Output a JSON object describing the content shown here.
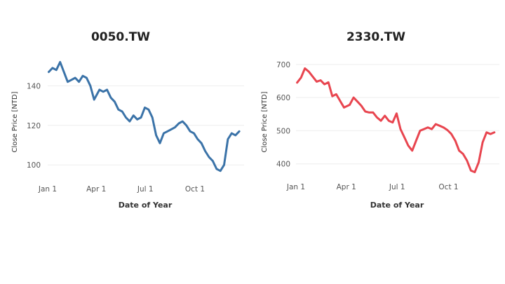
{
  "chart_data": [
    {
      "type": "line",
      "title": "0050.TW",
      "xlabel": "Date of Year",
      "ylabel": "Close Price [NTD]",
      "x_ticks": [
        "Jan 1",
        "Apr 1",
        "Jul 1",
        "Oct 1"
      ],
      "y_ticks": [
        100,
        120,
        140
      ],
      "ylim": [
        93,
        155
      ],
      "xlim": [
        "2022-01-01",
        "2022-12-31"
      ],
      "grid": true,
      "color": "#3b73a8",
      "series": [
        {
          "x": [
            "2022-01-03",
            "2022-01-10",
            "2022-01-17",
            "2022-01-24",
            "2022-02-07",
            "2022-02-14",
            "2022-02-21",
            "2022-02-28",
            "2022-03-07",
            "2022-03-14",
            "2022-03-21",
            "2022-03-28",
            "2022-04-07",
            "2022-04-14",
            "2022-04-21",
            "2022-04-28",
            "2022-05-05",
            "2022-05-12",
            "2022-05-19",
            "2022-05-26",
            "2022-06-02",
            "2022-06-09",
            "2022-06-16",
            "2022-06-23",
            "2022-06-30",
            "2022-07-07",
            "2022-07-14",
            "2022-07-21",
            "2022-07-28",
            "2022-08-04",
            "2022-08-11",
            "2022-08-18",
            "2022-08-25",
            "2022-09-01",
            "2022-09-08",
            "2022-09-15",
            "2022-09-22",
            "2022-09-29",
            "2022-10-06",
            "2022-10-13",
            "2022-10-20",
            "2022-10-27",
            "2022-11-03",
            "2022-11-10",
            "2022-11-17",
            "2022-11-24",
            "2022-12-01",
            "2022-12-08",
            "2022-12-15",
            "2022-12-22"
          ],
          "values": [
            147,
            149,
            148,
            152,
            142,
            143,
            144,
            142,
            145,
            144,
            140,
            133,
            138,
            137,
            138,
            134,
            132,
            128,
            127,
            124,
            122,
            125,
            123,
            124,
            129,
            128,
            124,
            115,
            111,
            116,
            117,
            118,
            119,
            121,
            122,
            120,
            117,
            116,
            113,
            111,
            107,
            104,
            102,
            98,
            97,
            100,
            113,
            116,
            115,
            117
          ]
        }
      ]
    },
    {
      "type": "line",
      "title": "2330.TW",
      "xlabel": "Date of Year",
      "ylabel": "Close Price [NTD]",
      "x_ticks": [
        "Jan 1",
        "Apr 1",
        "Jul 1",
        "Oct 1"
      ],
      "y_ticks": [
        400,
        500,
        600,
        700
      ],
      "ylim": [
        355,
        725
      ],
      "xlim": [
        "2022-01-01",
        "2022-12-31"
      ],
      "grid": true,
      "color": "#e8454f",
      "series": [
        {
          "x": [
            "2022-01-03",
            "2022-01-10",
            "2022-01-17",
            "2022-01-24",
            "2022-02-07",
            "2022-02-14",
            "2022-02-21",
            "2022-02-28",
            "2022-03-07",
            "2022-03-14",
            "2022-03-21",
            "2022-03-28",
            "2022-04-07",
            "2022-04-14",
            "2022-04-21",
            "2022-04-28",
            "2022-05-05",
            "2022-05-12",
            "2022-05-19",
            "2022-05-26",
            "2022-06-02",
            "2022-06-09",
            "2022-06-16",
            "2022-06-23",
            "2022-06-30",
            "2022-07-07",
            "2022-07-14",
            "2022-07-21",
            "2022-07-28",
            "2022-08-04",
            "2022-08-11",
            "2022-08-18",
            "2022-08-25",
            "2022-09-01",
            "2022-09-08",
            "2022-09-15",
            "2022-09-22",
            "2022-09-29",
            "2022-10-06",
            "2022-10-13",
            "2022-10-20",
            "2022-10-27",
            "2022-11-03",
            "2022-11-10",
            "2022-11-17",
            "2022-11-24",
            "2022-12-01",
            "2022-12-08",
            "2022-12-15",
            "2022-12-22"
          ],
          "values": [
            645,
            660,
            688,
            678,
            648,
            652,
            640,
            646,
            604,
            610,
            590,
            570,
            578,
            600,
            588,
            575,
            558,
            555,
            555,
            540,
            530,
            545,
            530,
            525,
            552,
            505,
            480,
            455,
            440,
            470,
            500,
            505,
            510,
            505,
            520,
            515,
            510,
            502,
            490,
            470,
            440,
            430,
            410,
            380,
            375,
            405,
            465,
            495,
            490,
            495
          ]
        }
      ]
    }
  ]
}
